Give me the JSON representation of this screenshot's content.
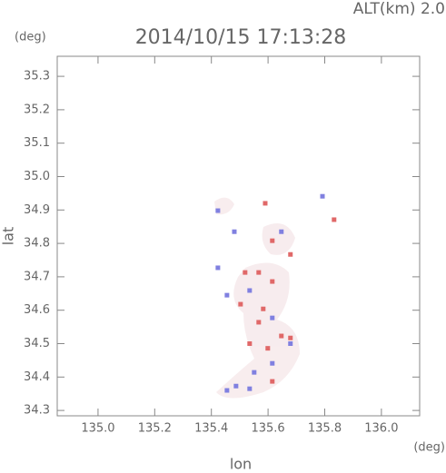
{
  "chart_data": {
    "type": "scatter",
    "title": "2014/10/15 17:13:28",
    "subtitle": "ALT(km) 2.0",
    "x_label": "lon",
    "y_label": "lat",
    "x_unit": "(deg)",
    "y_unit": "(deg)",
    "xlim": [
      134.856,
      136.135
    ],
    "ylim": [
      34.284,
      35.36
    ],
    "xticks": [
      {
        "value": 135.0,
        "label": "135.0"
      },
      135.2,
      135.4,
      135.6,
      135.8,
      {
        "value": 136.0,
        "label": "136.0"
      }
    ],
    "yticks": [
      34.3,
      34.4,
      34.5,
      34.6,
      34.7,
      34.8,
      34.9,
      {
        "value": 35.0,
        "label": "35.0"
      },
      35.1,
      35.2,
      35.3
    ],
    "x": [
      135.423,
      135.59,
      135.792,
      135.833,
      135.615,
      135.647,
      135.679,
      135.481,
      135.423,
      135.567,
      135.615,
      135.535,
      135.583,
      135.615,
      135.567,
      135.647,
      135.679,
      135.599,
      135.535,
      135.679,
      135.615,
      135.551,
      135.487,
      135.535,
      135.455,
      135.615,
      135.519,
      135.455,
      135.503
    ],
    "values": [
      34.898,
      34.92,
      34.941,
      34.871,
      34.808,
      34.835,
      34.767,
      34.835,
      34.727,
      34.713,
      34.686,
      34.659,
      34.604,
      34.577,
      34.564,
      34.523,
      34.5,
      34.486,
      34.5,
      34.517,
      34.441,
      34.414,
      34.373,
      34.365,
      34.36,
      34.387,
      34.713,
      34.645,
      34.618
    ],
    "point_colors": [
      "#8080e0",
      "#e06868",
      "#8080e0",
      "#e06868",
      "#e06868",
      "#8080e0",
      "#e06868",
      "#8080e0",
      "#8080e0",
      "#e06868",
      "#e06868",
      "#8080e0",
      "#e06868",
      "#8080e0",
      "#e06868",
      "#e06868",
      "#8080e0",
      "#e06868",
      "#e06868",
      "#e06868",
      "#8080e0",
      "#8080e0",
      "#8080e0",
      "#8080e0",
      "#8080e0",
      "#e06868",
      "#e06868",
      "#8080e0",
      "#e06868"
    ]
  }
}
